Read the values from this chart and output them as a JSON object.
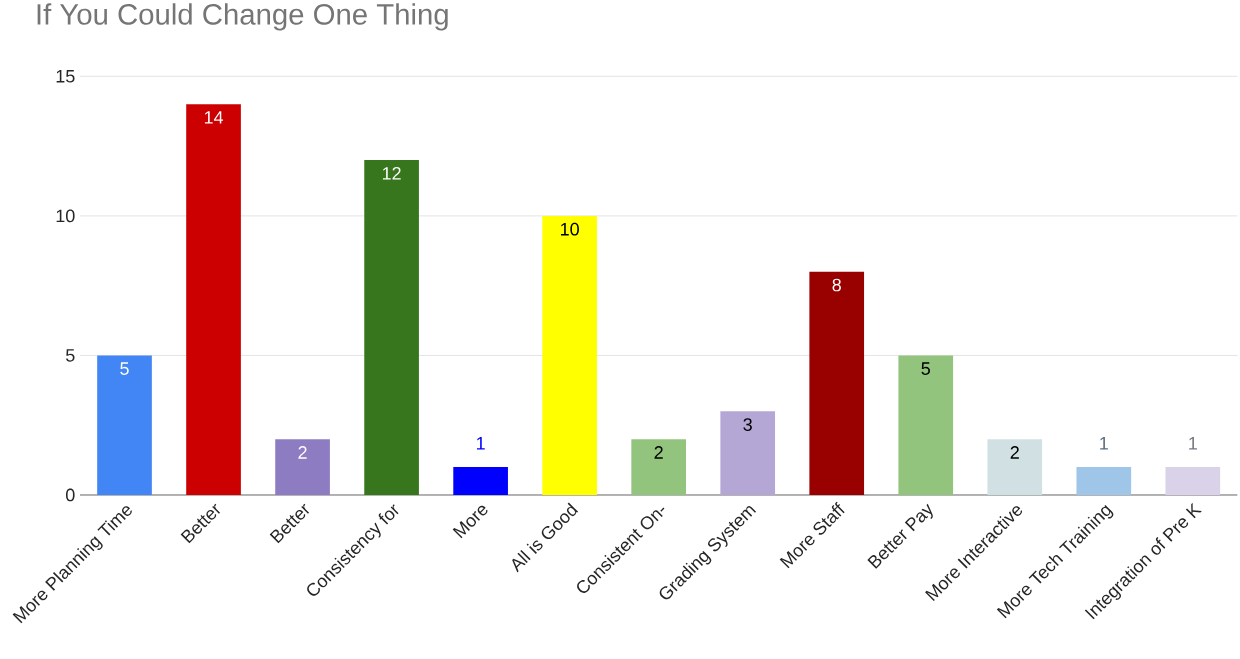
{
  "chart_data": {
    "type": "bar",
    "title": "If You Could Change One Thing",
    "categories": [
      "More Planning Time",
      "Better",
      "Better",
      "Consistency for",
      "More",
      "All is Good",
      "Consistent On-",
      "Grading System",
      "More Staff",
      "Better Pay",
      "More Interactive",
      "More Tech Training",
      "Integration of Pre K"
    ],
    "values": [
      5,
      14,
      2,
      12,
      1,
      10,
      2,
      3,
      8,
      5,
      2,
      1,
      1
    ],
    "colors": [
      "#4285f4",
      "#cc0000",
      "#8e7cc3",
      "#38761d",
      "#0000ff",
      "#ffff00",
      "#93c47d",
      "#b4a7d6",
      "#990000",
      "#93c47d",
      "#d0e0e3",
      "#9fc5e8",
      "#d9d2e9"
    ],
    "ylim": [
      0,
      15
    ],
    "yticks": [
      0,
      5,
      10,
      15
    ],
    "grid": "y",
    "data_labels": true
  }
}
